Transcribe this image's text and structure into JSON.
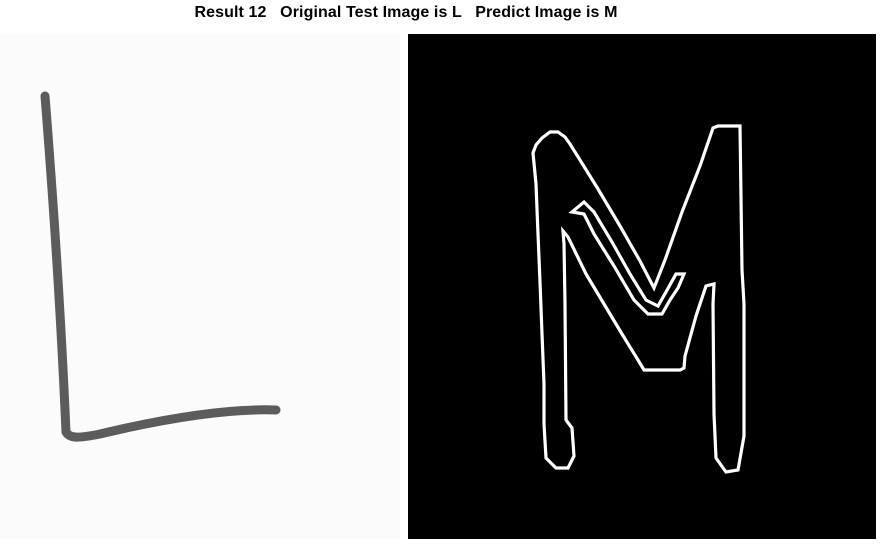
{
  "title": "Result 12   Original Test Image is L   Predict Image is M",
  "original_image": {
    "letter": "L",
    "stroke_color": "#5c5c5c",
    "background_color": "#fbfbfb"
  },
  "predicted_image": {
    "letter": "M",
    "edge_color": "#ffffff",
    "background_color": "#000000"
  }
}
